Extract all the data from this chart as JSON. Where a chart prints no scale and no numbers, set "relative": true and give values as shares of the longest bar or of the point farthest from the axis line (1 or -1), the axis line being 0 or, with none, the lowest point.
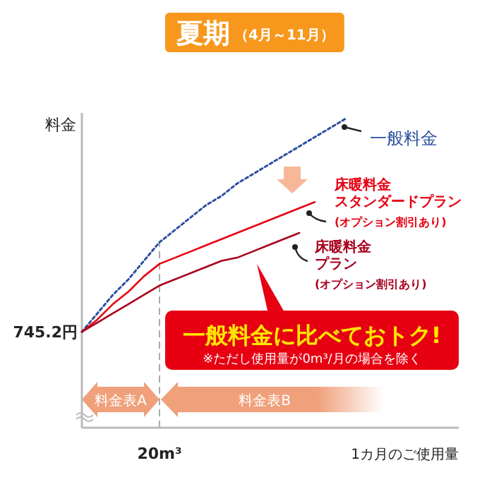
{
  "chart_data": {
    "type": "line",
    "title": "夏期",
    "subtitle": "（4月～11月）",
    "ylabel": "料金",
    "xlabel": "1カ月のご使用量",
    "relative": true,
    "marker": "none",
    "categories": [
      null,
      null,
      null,
      null,
      null,
      null,
      null,
      null,
      null,
      null,
      null,
      null,
      null,
      null,
      null,
      null,
      null,
      null,
      null,
      null,
      null,
      null,
      null,
      null,
      null
    ],
    "series": [
      {
        "name": "一般料金",
        "color": "#2b4fa0",
        "line_style": "dotted",
        "values": [
          0.31,
          0.37,
          0.43,
          0.48,
          0.54,
          0.6,
          0.64,
          0.68,
          0.72,
          0.75,
          0.79,
          0.82,
          0.85,
          0.88,
          0.91,
          0.94,
          0.97,
          1.0,
          null,
          null,
          null,
          null,
          null,
          null,
          null
        ]
      },
      {
        "name": "床暖料金スタンダードプラン",
        "color": "#e60012",
        "line_style": "solid",
        "values": [
          0.31,
          0.35,
          0.4,
          0.44,
          0.49,
          0.53,
          0.55,
          0.57,
          0.59,
          0.61,
          0.63,
          0.65,
          0.67,
          0.69,
          0.71,
          0.73,
          null,
          null,
          null,
          null,
          null,
          null,
          null,
          null,
          null
        ]
      },
      {
        "name": "床暖料金プラン",
        "color": "#a8001e",
        "line_style": "solid",
        "values": [
          0.31,
          0.34,
          0.37,
          0.4,
          0.43,
          0.46,
          0.48,
          0.5,
          0.52,
          0.54,
          0.55,
          0.57,
          0.59,
          0.61,
          0.63,
          null,
          null,
          null,
          null,
          null,
          null,
          null,
          null,
          null,
          null
        ]
      }
    ],
    "annotations": [
      "745.2円",
      "(オプション割引あり)",
      "(オプション割引あり)",
      "一般料金に比べておトク!",
      "※ただし使用量が0m³/月の場合を除く",
      "料金表A",
      "料金表B",
      "20m³"
    ]
  }
}
